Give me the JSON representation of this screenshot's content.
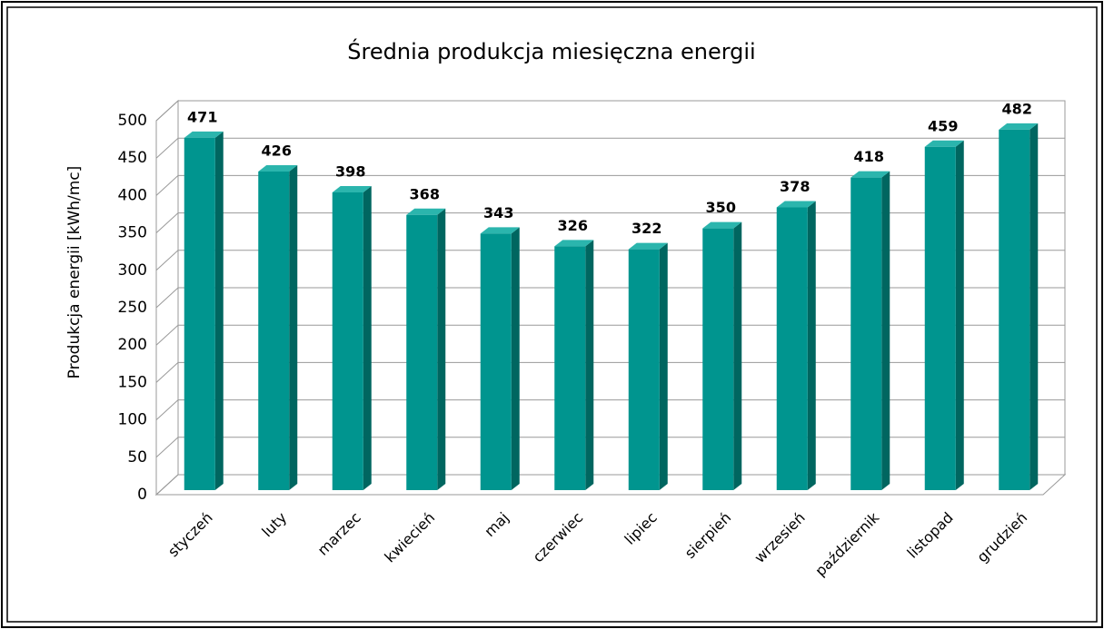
{
  "chart_data": {
    "type": "bar3d",
    "title": "Średnia produkcja miesięczna energii",
    "y_label": "Produkcja energii [kWh/mc]",
    "categories": [
      "styczeń",
      "luty",
      "marzec",
      "kwiecień",
      "maj",
      "czerwiec",
      "lipiec",
      "sierpień",
      "wrzesień",
      "październik",
      "listopad",
      "grudzień"
    ],
    "values": [
      471,
      426,
      398,
      368,
      343,
      326,
      322,
      350,
      378,
      418,
      459,
      482
    ],
    "color": "#00958f",
    "ylim": [
      0,
      500
    ],
    "yticks": [
      0,
      50,
      100,
      150,
      200,
      250,
      300,
      350,
      400,
      450,
      500
    ],
    "grid": true
  }
}
